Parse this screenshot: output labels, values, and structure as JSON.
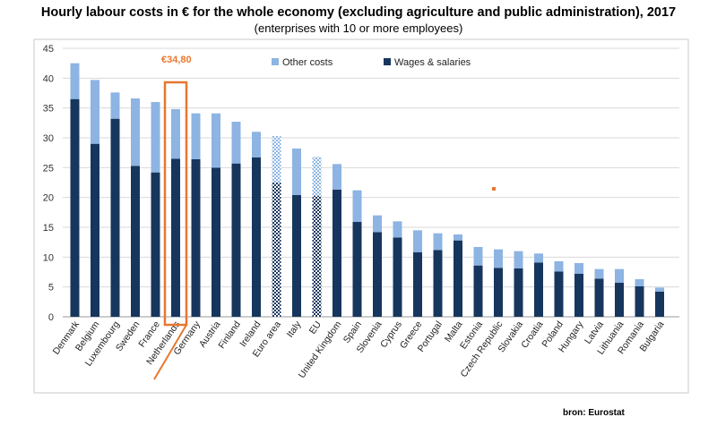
{
  "chart_data": {
    "type": "bar",
    "stacked": true,
    "title": "Hourly labour costs in € for the whole economy (excluding agriculture and public administration), 2017",
    "subtitle": "(enterprises with 10 or more employees)",
    "categories": [
      "Denmark",
      "Belgium",
      "Luxembourg",
      "Sweden",
      "France",
      "Netherlands",
      "Germany",
      "Austria",
      "Finland",
      "Ireland",
      "Euro area",
      "Italy",
      "EU",
      "United Kingdom",
      "Spain",
      "Slovenia",
      "Cyprus",
      "Greece",
      "Portugal",
      "Malta",
      "Estonia",
      "Czech Republic",
      "Slovakia",
      "Croatia",
      "Poland",
      "Hungary",
      "Latvia",
      "Lithuania",
      "Romania",
      "Bulgaria"
    ],
    "aggregates": [
      "Euro area",
      "EU"
    ],
    "series": [
      {
        "name": "Wages & salaries",
        "color": "#17365d",
        "values": [
          36.5,
          29.0,
          33.2,
          25.3,
          24.2,
          26.5,
          26.4,
          25.0,
          25.7,
          26.7,
          22.5,
          20.4,
          20.3,
          21.3,
          15.9,
          14.2,
          13.3,
          10.8,
          11.2,
          12.8,
          8.6,
          8.2,
          8.1,
          9.1,
          7.6,
          7.2,
          6.4,
          5.7,
          5.1,
          4.2
        ]
      },
      {
        "name": "Other costs",
        "color": "#8db4e2",
        "values": [
          6.0,
          10.7,
          4.4,
          11.3,
          11.8,
          8.3,
          7.7,
          9.1,
          7.0,
          4.3,
          7.8,
          7.8,
          6.5,
          4.3,
          5.3,
          2.8,
          2.7,
          3.7,
          2.8,
          1.0,
          3.1,
          3.1,
          2.9,
          1.5,
          1.7,
          1.8,
          1.6,
          2.3,
          1.2,
          0.7
        ]
      }
    ],
    "ylim": [
      0,
      45
    ],
    "yticks": [
      0,
      5,
      10,
      15,
      20,
      25,
      30,
      35,
      40,
      45
    ],
    "grid": true,
    "legend_position": "top",
    "annotation": {
      "text": "€34,80",
      "category": "Netherlands"
    }
  },
  "source": "bron: Eurostat",
  "colors": {
    "accent": "#e8772e",
    "grid": "#d9d9d9"
  }
}
